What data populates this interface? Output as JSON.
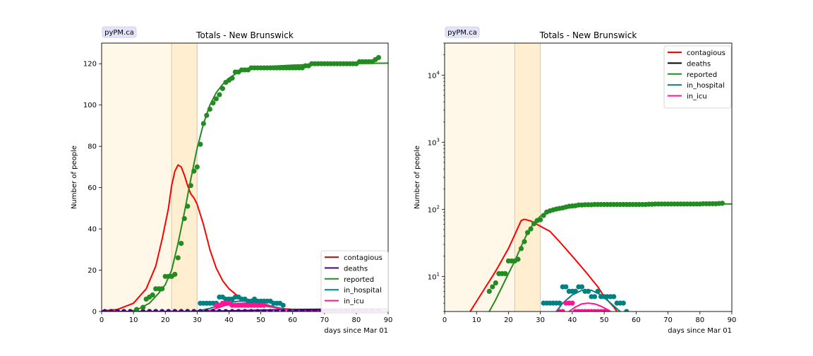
{
  "chart_data": [
    {
      "type": "line",
      "badge": "pyPM.ca",
      "title": "Totals - New Brunswick",
      "xlabel": "days since Mar 01",
      "ylabel": "Number of people",
      "xlim": [
        0,
        90
      ],
      "ylim": [
        0,
        130
      ],
      "yscale": "linear",
      "xticks": [
        0,
        10,
        20,
        30,
        40,
        50,
        60,
        70,
        80,
        90
      ],
      "yticks": [
        0,
        20,
        40,
        60,
        80,
        100,
        120
      ],
      "shaded_periods": [
        [
          0,
          22
        ],
        [
          22,
          30
        ]
      ],
      "legend": {
        "placement": "lower-right",
        "entries": [
          "contagious",
          "deaths",
          "reported",
          "in_hospital",
          "in_icu"
        ]
      },
      "series": [
        {
          "name": "contagious",
          "kind": "line",
          "color": "#ff0000",
          "x": [
            0,
            5,
            10,
            14,
            17,
            19,
            21,
            22,
            23,
            24,
            25,
            26,
            27,
            28,
            29,
            30,
            32,
            34,
            36,
            38,
            40,
            44,
            50,
            56,
            62,
            70,
            80,
            90
          ],
          "y": [
            0.3,
            1,
            4,
            11,
            22,
            35,
            50,
            61,
            68,
            71,
            70,
            66,
            61,
            57,
            55,
            52,
            42,
            30,
            21,
            15,
            11,
            6,
            3,
            1.5,
            0.8,
            0.4,
            0.2,
            0.1
          ]
        },
        {
          "name": "deaths",
          "kind": "line",
          "color": "#4b0082",
          "x": [
            0,
            30,
            40,
            50,
            60,
            70,
            80,
            90
          ],
          "y": [
            0,
            0.05,
            0.3,
            0.7,
            1.0,
            1.1,
            1.2,
            1.2
          ]
        },
        {
          "name": "deaths",
          "kind": "points",
          "color": "#4b0082",
          "x": [
            1,
            3,
            5,
            7,
            9,
            11,
            13,
            15,
            17,
            19,
            21,
            23,
            25,
            27,
            29,
            31,
            33,
            35,
            37,
            39,
            41,
            43,
            45,
            47,
            49,
            51,
            53,
            55,
            57,
            59,
            61,
            63,
            65,
            67,
            69,
            71,
            73,
            75,
            77,
            79,
            81,
            83,
            85,
            87
          ],
          "y": [
            0,
            0,
            0,
            0,
            0,
            0,
            0,
            0,
            0,
            0,
            0,
            0,
            0,
            0,
            0,
            0,
            0,
            0,
            0,
            0,
            0,
            0,
            0,
            0,
            0,
            0,
            0,
            0,
            0,
            0,
            0,
            0,
            0,
            0,
            0,
            0,
            0,
            0,
            0,
            0,
            0,
            0,
            0,
            0
          ]
        },
        {
          "name": "reported",
          "kind": "line",
          "color": "#228b22",
          "x": [
            9,
            12,
            15,
            18,
            20,
            22,
            24,
            26,
            28,
            30,
            32,
            34,
            36,
            38,
            40,
            43,
            46,
            50,
            60,
            70,
            80,
            90
          ],
          "y": [
            0,
            1.5,
            4,
            9,
            13,
            20,
            33,
            48,
            64,
            79,
            91,
            100,
            106,
            110,
            113,
            116,
            117.5,
            118.5,
            119.3,
            119.8,
            120.1,
            120.3
          ]
        },
        {
          "name": "reported",
          "kind": "points",
          "color": "#228b22",
          "x": [
            11,
            13,
            14,
            15,
            16,
            17,
            18,
            19,
            20,
            21,
            22,
            23,
            24,
            25,
            26,
            27,
            28,
            29,
            30,
            31,
            32,
            33,
            34,
            35,
            36,
            37,
            38,
            39,
            40,
            41,
            42,
            43,
            44,
            45,
            46,
            47,
            48,
            49,
            50,
            51,
            52,
            53,
            54,
            55,
            56,
            57,
            58,
            59,
            60,
            61,
            62,
            63,
            64,
            65,
            66,
            67,
            68,
            69,
            70,
            71,
            72,
            73,
            74,
            75,
            76,
            77,
            78,
            79,
            80,
            81,
            82,
            83,
            84,
            85,
            86,
            87
          ],
          "y": [
            1,
            2,
            6,
            7,
            8,
            11,
            11,
            11,
            17,
            17,
            17,
            18,
            26,
            33,
            45,
            51,
            61,
            68,
            70,
            81,
            91,
            95,
            98,
            101,
            103,
            105,
            108,
            111,
            112,
            113,
            116,
            116,
            117,
            117,
            117,
            118,
            118,
            118,
            118,
            118,
            118,
            118,
            118,
            118,
            118,
            118,
            118,
            118,
            118,
            118,
            118,
            118,
            119,
            119,
            120,
            120,
            120,
            120,
            120,
            120,
            120,
            120,
            120,
            120,
            120,
            120,
            120,
            120,
            120,
            121,
            121,
            121,
            121,
            121,
            122,
            123
          ]
        },
        {
          "name": "in_hospital",
          "kind": "line",
          "color": "#008080",
          "x": [
            28,
            31,
            34,
            37,
            40,
            43,
            46,
            49,
            52,
            55,
            58,
            62,
            70,
            80,
            90
          ],
          "y": [
            0,
            0.5,
            1.5,
            3,
            4.3,
            5,
            5,
            4.4,
            3.2,
            2,
            1,
            0.4,
            0.1,
            0,
            0
          ]
        },
        {
          "name": "in_hospital",
          "kind": "points",
          "color": "#008080",
          "x": [
            31,
            32,
            33,
            34,
            35,
            36,
            37,
            38,
            39,
            40,
            41,
            42,
            43,
            44,
            45,
            46,
            47,
            48,
            49,
            50,
            51,
            52,
            53,
            54,
            55,
            56,
            57
          ],
          "y": [
            4,
            4,
            4,
            4,
            4,
            4,
            7,
            7,
            6,
            6,
            6,
            7,
            7,
            6,
            6,
            5,
            5,
            6,
            5,
            5,
            5,
            5,
            5,
            4,
            4,
            4,
            3
          ]
        },
        {
          "name": "in_icu",
          "kind": "line",
          "color": "#ff1493",
          "x": [
            33,
            36,
            39,
            42,
            45,
            48,
            51,
            54,
            57,
            60,
            70,
            90
          ],
          "y": [
            0,
            1.5,
            3,
            3.8,
            4,
            3.8,
            3.2,
            2,
            1,
            0.4,
            0.1,
            0
          ]
        },
        {
          "name": "in_icu",
          "kind": "points",
          "color": "#ff1493",
          "x": [
            36,
            37,
            38,
            39,
            40,
            41,
            42,
            43,
            44,
            45,
            46,
            47,
            48,
            49,
            50,
            51
          ],
          "y": [
            3,
            3,
            4,
            4,
            4,
            3,
            3,
            3,
            3,
            3,
            3,
            3,
            3,
            3,
            3,
            3
          ]
        }
      ]
    },
    {
      "type": "line",
      "badge": "pyPM.ca",
      "title": "Totals - New Brunswick",
      "xlabel": "days since Mar 01",
      "ylabel": "Number of people",
      "xlim": [
        0,
        90
      ],
      "ylim": [
        3,
        30000
      ],
      "yscale": "log",
      "xticks": [
        0,
        10,
        20,
        30,
        40,
        50,
        60,
        70,
        80,
        90
      ],
      "yticks": [
        10,
        100,
        1000,
        10000
      ],
      "ytick_labels": [
        {
          "base": "10",
          "exp": "1"
        },
        {
          "base": "10",
          "exp": "2"
        },
        {
          "base": "10",
          "exp": "3"
        },
        {
          "base": "10",
          "exp": "4"
        }
      ],
      "shaded_periods": [
        [
          0,
          22
        ],
        [
          22,
          30
        ]
      ],
      "legend": {
        "placement": "top-right",
        "entries": [
          "contagious",
          "deaths",
          "reported",
          "in_hospital",
          "in_icu"
        ]
      },
      "series": [
        {
          "name": "contagious",
          "kind": "line",
          "color": "#ff0000",
          "x": [
            8,
            12,
            16,
            20,
            22,
            24,
            25,
            27,
            30,
            33,
            36,
            40,
            44,
            48,
            50,
            53,
            54
          ],
          "y": [
            3,
            6,
            12,
            26,
            42,
            68,
            71,
            67,
            56,
            47,
            33,
            20,
            12,
            7,
            5,
            3.5,
            3
          ]
        },
        {
          "name": "reported",
          "kind": "line",
          "color": "#228b22",
          "x": [
            14,
            16,
            18,
            20,
            22,
            24,
            26,
            28,
            30,
            32,
            34,
            36,
            38,
            40,
            43,
            46,
            50,
            60,
            70,
            80,
            90
          ],
          "y": [
            3,
            4.5,
            7,
            11,
            17,
            28,
            45,
            63,
            79,
            91,
            100,
            106,
            110,
            113,
            116,
            117.5,
            118.5,
            119.3,
            119.8,
            120.1,
            120.3
          ]
        },
        {
          "name": "reported",
          "kind": "points",
          "color": "#228b22",
          "x": [
            14,
            15,
            16,
            17,
            18,
            19,
            20,
            21,
            22,
            23,
            24,
            25,
            26,
            27,
            28,
            29,
            30,
            31,
            32,
            33,
            34,
            35,
            36,
            37,
            38,
            39,
            40,
            41,
            42,
            43,
            44,
            45,
            46,
            47,
            48,
            49,
            50,
            51,
            52,
            53,
            54,
            55,
            56,
            57,
            58,
            59,
            60,
            61,
            62,
            63,
            64,
            65,
            66,
            67,
            68,
            69,
            70,
            71,
            72,
            73,
            74,
            75,
            76,
            77,
            78,
            79,
            80,
            81,
            82,
            83,
            84,
            85,
            86,
            87
          ],
          "y": [
            6,
            7,
            8,
            11,
            11,
            11,
            17,
            17,
            17,
            18,
            26,
            33,
            45,
            51,
            61,
            68,
            70,
            81,
            91,
            95,
            98,
            101,
            103,
            105,
            108,
            111,
            112,
            113,
            116,
            116,
            117,
            117,
            117,
            118,
            118,
            118,
            118,
            118,
            118,
            118,
            118,
            118,
            118,
            118,
            118,
            118,
            118,
            118,
            118,
            118,
            119,
            119,
            120,
            120,
            120,
            120,
            120,
            120,
            120,
            120,
            120,
            120,
            120,
            120,
            120,
            120,
            120,
            121,
            121,
            121,
            121,
            121,
            122,
            123
          ]
        },
        {
          "name": "in_hospital",
          "kind": "line",
          "color": "#008080",
          "x": [
            35,
            37,
            40,
            43,
            46,
            49,
            52,
            54,
            55
          ],
          "y": [
            3,
            4,
            5.3,
            6.2,
            6.2,
            5.3,
            4,
            3.3,
            3
          ]
        },
        {
          "name": "in_hospital",
          "kind": "points",
          "color": "#008080",
          "x": [
            31,
            32,
            33,
            34,
            35,
            36,
            37,
            38,
            39,
            40,
            41,
            42,
            43,
            44,
            45,
            46,
            47,
            48,
            49,
            50,
            51,
            52,
            53,
            54,
            55,
            56,
            57
          ],
          "y": [
            4,
            4,
            4,
            4,
            4,
            4,
            7,
            7,
            6,
            6,
            6,
            7,
            7,
            6,
            6,
            5,
            5,
            6,
            5,
            5,
            5,
            5,
            5,
            4,
            4,
            4,
            3
          ]
        },
        {
          "name": "in_icu",
          "kind": "line",
          "color": "#ff1493",
          "x": [
            39,
            41,
            43,
            45,
            47,
            49,
            51,
            52
          ],
          "y": [
            3,
            3.5,
            3.9,
            4.0,
            3.9,
            3.6,
            3.2,
            3
          ]
        },
        {
          "name": "in_icu",
          "kind": "points",
          "color": "#ff1493",
          "x": [
            36,
            37,
            38,
            39,
            40,
            41,
            42,
            43,
            44,
            45,
            46,
            47,
            48,
            49,
            50,
            51
          ],
          "y": [
            3,
            3,
            4,
            4,
            4,
            3,
            3,
            3,
            3,
            3,
            3,
            3,
            3,
            3,
            3,
            3
          ]
        }
      ]
    }
  ]
}
